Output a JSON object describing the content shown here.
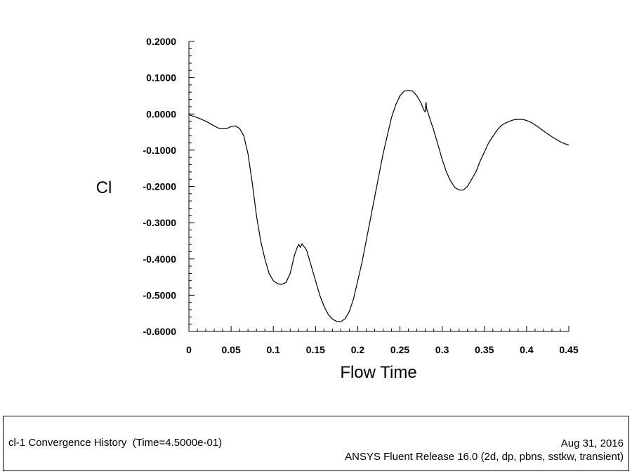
{
  "chart_data": {
    "type": "line",
    "xlabel": "Flow Time",
    "ylabel": "Cl",
    "xlim": [
      0,
      0.45
    ],
    "ylim": [
      -0.6,
      0.2
    ],
    "x_ticks": [
      0,
      0.05,
      0.1,
      0.15,
      0.2,
      0.25,
      0.3,
      0.35,
      0.4,
      0.45
    ],
    "x_tick_labels": [
      "0",
      "0.05",
      "0.1",
      "0.15",
      "0.2",
      "0.25",
      "0.3",
      "0.35",
      "0.4",
      "0.45"
    ],
    "y_ticks": [
      -0.6,
      -0.5,
      -0.4,
      -0.3,
      -0.2,
      -0.1,
      0,
      0.1,
      0.2
    ],
    "y_tick_labels": [
      "-0.6000",
      "-0.5000",
      "-0.4000",
      "-0.3000",
      "-0.2000",
      "-0.1000",
      "0.0000",
      "0.1000",
      "0.2000"
    ],
    "grid": false,
    "legend": false,
    "series": [
      {
        "color": "#000000",
        "points": [
          [
            0.0,
            -0.002
          ],
          [
            0.01,
            -0.01
          ],
          [
            0.02,
            -0.02
          ],
          [
            0.03,
            -0.033
          ],
          [
            0.036,
            -0.04
          ],
          [
            0.045,
            -0.04
          ],
          [
            0.05,
            -0.035
          ],
          [
            0.055,
            -0.033
          ],
          [
            0.06,
            -0.04
          ],
          [
            0.065,
            -0.06
          ],
          [
            0.07,
            -0.11
          ],
          [
            0.075,
            -0.19
          ],
          [
            0.08,
            -0.28
          ],
          [
            0.085,
            -0.35
          ],
          [
            0.09,
            -0.4
          ],
          [
            0.095,
            -0.44
          ],
          [
            0.1,
            -0.46
          ],
          [
            0.105,
            -0.468
          ],
          [
            0.11,
            -0.47
          ],
          [
            0.115,
            -0.465
          ],
          [
            0.12,
            -0.44
          ],
          [
            0.125,
            -0.39
          ],
          [
            0.128,
            -0.37
          ],
          [
            0.13,
            -0.36
          ],
          [
            0.132,
            -0.368
          ],
          [
            0.134,
            -0.358
          ],
          [
            0.136,
            -0.365
          ],
          [
            0.138,
            -0.37
          ],
          [
            0.14,
            -0.38
          ],
          [
            0.145,
            -0.42
          ],
          [
            0.15,
            -0.46
          ],
          [
            0.155,
            -0.5
          ],
          [
            0.16,
            -0.53
          ],
          [
            0.165,
            -0.553
          ],
          [
            0.17,
            -0.566
          ],
          [
            0.175,
            -0.572
          ],
          [
            0.18,
            -0.573
          ],
          [
            0.185,
            -0.565
          ],
          [
            0.19,
            -0.545
          ],
          [
            0.195,
            -0.51
          ],
          [
            0.2,
            -0.46
          ],
          [
            0.205,
            -0.41
          ],
          [
            0.21,
            -0.35
          ],
          [
            0.215,
            -0.29
          ],
          [
            0.22,
            -0.23
          ],
          [
            0.225,
            -0.17
          ],
          [
            0.23,
            -0.11
          ],
          [
            0.235,
            -0.06
          ],
          [
            0.24,
            -0.01
          ],
          [
            0.245,
            0.025
          ],
          [
            0.25,
            0.05
          ],
          [
            0.255,
            0.063
          ],
          [
            0.26,
            0.065
          ],
          [
            0.265,
            0.063
          ],
          [
            0.27,
            0.05
          ],
          [
            0.275,
            0.03
          ],
          [
            0.278,
            0.012
          ],
          [
            0.28,
            0.005
          ],
          [
            0.2805,
            0.022
          ],
          [
            0.281,
            0.032
          ],
          [
            0.2815,
            0.015
          ],
          [
            0.283,
            0.005
          ],
          [
            0.285,
            -0.01
          ],
          [
            0.29,
            -0.045
          ],
          [
            0.295,
            -0.085
          ],
          [
            0.3,
            -0.125
          ],
          [
            0.305,
            -0.16
          ],
          [
            0.31,
            -0.185
          ],
          [
            0.315,
            -0.203
          ],
          [
            0.32,
            -0.21
          ],
          [
            0.325,
            -0.21
          ],
          [
            0.33,
            -0.2
          ],
          [
            0.335,
            -0.18
          ],
          [
            0.34,
            -0.16
          ],
          [
            0.345,
            -0.13
          ],
          [
            0.35,
            -0.105
          ],
          [
            0.355,
            -0.08
          ],
          [
            0.36,
            -0.062
          ],
          [
            0.365,
            -0.045
          ],
          [
            0.37,
            -0.032
          ],
          [
            0.375,
            -0.025
          ],
          [
            0.38,
            -0.02
          ],
          [
            0.385,
            -0.016
          ],
          [
            0.39,
            -0.015
          ],
          [
            0.395,
            -0.015
          ],
          [
            0.4,
            -0.018
          ],
          [
            0.405,
            -0.023
          ],
          [
            0.41,
            -0.03
          ],
          [
            0.415,
            -0.038
          ],
          [
            0.42,
            -0.047
          ],
          [
            0.425,
            -0.055
          ],
          [
            0.43,
            -0.063
          ],
          [
            0.435,
            -0.07
          ],
          [
            0.44,
            -0.077
          ],
          [
            0.445,
            -0.082
          ],
          [
            0.45,
            -0.086
          ]
        ]
      }
    ]
  },
  "footer": {
    "left": "cl-1 Convergence History  (Time=4.5000e-01)",
    "date": "Aug 31, 2016",
    "release": "ANSYS Fluent Release 16.0 (2d, dp, pbns, sstkw, transient)"
  }
}
